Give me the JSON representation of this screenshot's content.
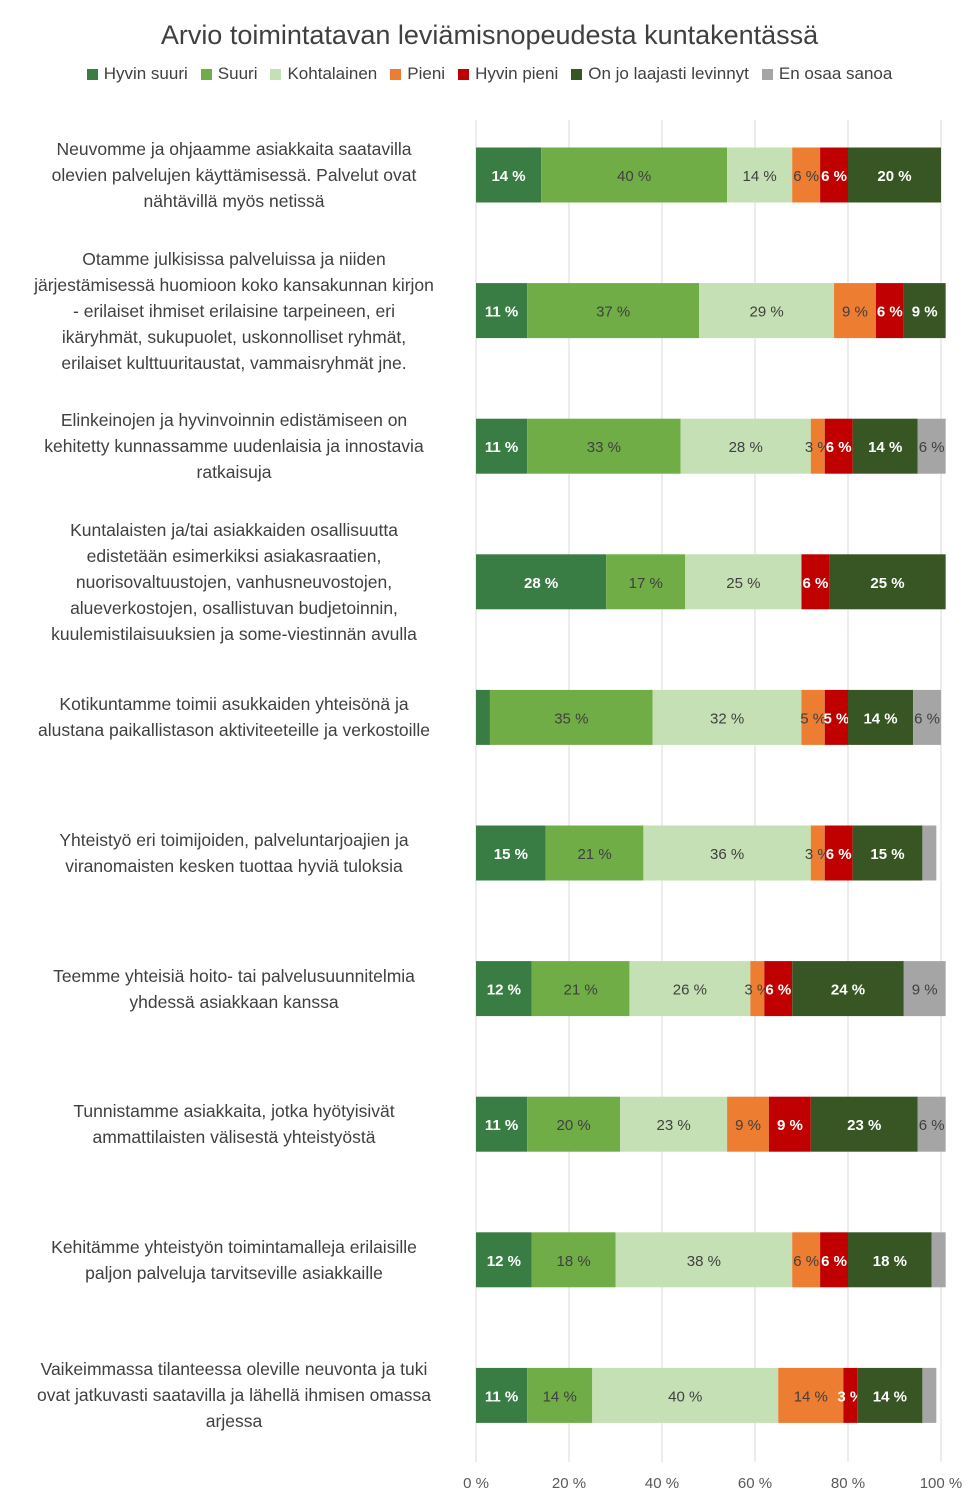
{
  "chart_data": {
    "type": "bar",
    "orientation": "horizontal",
    "stacked": "percent",
    "title": "Arvio toimintatavan leviämisnopeudesta kuntakentässä",
    "legend_position": "top",
    "grid": true,
    "xlim": [
      0,
      100
    ],
    "x_ticks": [
      "0 %",
      "20 %",
      "40 %",
      "60 %",
      "80 %",
      "100 %"
    ],
    "categories": [
      "Neuvomme ja ohjaamme asiakkaita saatavilla olevien palvelujen käyttämisessä. Palvelut ovat nähtävillä myös netissä",
      "Otamme julkisissa palveluissa ja niiden järjestämisessä huomioon koko kansakunnan kirjon - erilaiset ihmiset erilaisine tarpeineen, eri ikäryhmät, sukupuolet, uskonnolliset ryhmät, erilaiset kulttuuritaustat, vammaisryhmät jne.",
      "Elinkeinojen ja hyvinvoinnin edistämiseen on kehitetty kunnassamme uudenlaisia ja innostavia ratkaisuja",
      "Kuntalaisten ja/tai asiakkaiden osallisuutta edistetään esimerkiksi asiakasraatien, nuorisovaltuustojen, vanhusneuvostojen, alueverkostojen, osallistuvan budjetoinnin, kuulemistilaisuuksien ja some-viestinnän avulla",
      "Kotikuntamme toimii asukkaiden yhteisönä ja alustana paikallistason aktiviteeteille ja verkostoille",
      "Yhteistyö eri toimijoiden, palveluntarjoajien ja viranomaisten kesken tuottaa hyviä tuloksia",
      "Teemme yhteisiä hoito- tai palvelusuunnitelmia yhdessä asiakkaan kanssa",
      "Tunnistamme asiakkaita, jotka hyötyisivät ammattilaisten välisestä yhteistyöstä",
      "Kehitämme yhteistyön toimintamalleja erilaisille paljon palveluja tarvitseville asiakkaille",
      "Vaikeimmassa tilanteessa oleville neuvonta ja tuki ovat jatkuvasti saatavilla ja lähellä ihmisen omassa arjessa"
    ],
    "category_lines": [
      [
        "Neuvomme ja ohjaamme asiakkaita saatavilla",
        "olevien palvelujen käyttämisessä. Palvelut ovat",
        "nähtävillä myös netissä"
      ],
      [
        "Otamme julkisissa palveluissa ja niiden",
        "järjestämisessä huomioon koko kansakunnan kirjon",
        "- erilaiset ihmiset erilaisine tarpeineen, eri",
        "ikäryhmät, sukupuolet, uskonnolliset ryhmät,",
        "erilaiset kulttuuritaustat, vammaisryhmät jne."
      ],
      [
        "Elinkeinojen ja hyvinvoinnin edistämiseen on",
        "kehitetty kunnassamme uudenlaisia ja innostavia",
        "ratkaisuja"
      ],
      [
        "Kuntalaisten ja/tai asiakkaiden osallisuutta",
        "edistetään esimerkiksi asiakasraatien,",
        "nuorisovaltuustojen, vanhusneuvostojen,",
        "alueverkostojen, osallistuvan budjetoinnin,",
        "kuulemistilaisuuksien ja some-viestinnän avulla"
      ],
      [
        "Kotikuntamme toimii asukkaiden yhteisönä ja",
        "alustana paikallistason aktiviteeteille ja verkostoille"
      ],
      [
        "Yhteistyö eri toimijoiden, palveluntarjoajien ja",
        "viranomaisten kesken tuottaa hyviä tuloksia"
      ],
      [
        "Teemme yhteisiä hoito- tai palvelusuunnitelmia",
        "yhdessä asiakkaan kanssa"
      ],
      [
        "Tunnistamme asiakkaita, jotka hyötyisivät",
        "ammattilaisten välisestä yhteistyöstä"
      ],
      [
        "Kehitämme yhteistyön toimintamalleja erilaisille",
        "paljon palveluja tarvitseville asiakkaille"
      ],
      [
        "Vaikeimmassa tilanteessa oleville neuvonta ja tuki",
        "ovat jatkuvasti saatavilla ja lähellä ihmisen omassa",
        "arjessa"
      ]
    ],
    "series": [
      {
        "name": "Hyvin suuri",
        "color": "#3a7d44",
        "label_color": "#ffffff",
        "label_bold": true,
        "values": [
          14,
          11,
          11,
          28,
          3,
          15,
          12,
          11,
          12,
          11
        ],
        "labels": [
          "14 %",
          "11 %",
          "11 %",
          "28 %",
          "",
          "15 %",
          "12 %",
          "11 %",
          "12 %",
          "11 %"
        ]
      },
      {
        "name": "Suuri",
        "color": "#70ad47",
        "label_color": "#404040",
        "label_bold": false,
        "values": [
          40,
          37,
          33,
          17,
          35,
          21,
          21,
          20,
          18,
          14
        ],
        "labels": [
          "40 %",
          "37 %",
          "33 %",
          "17 %",
          "35 %",
          "21 %",
          "21 %",
          "20 %",
          "18 %",
          "14 %"
        ]
      },
      {
        "name": "Kohtalainen",
        "color": "#c5e0b4",
        "label_color": "#404040",
        "label_bold": false,
        "values": [
          14,
          29,
          28,
          25,
          32,
          36,
          26,
          23,
          38,
          40
        ],
        "labels": [
          "14 %",
          "29 %",
          "28 %",
          "25 %",
          "32 %",
          "36 %",
          "26 %",
          "23 %",
          "38 %",
          "40 %"
        ]
      },
      {
        "name": "Pieni",
        "color": "#ed7d31",
        "label_color": "#404040",
        "label_bold": false,
        "values": [
          6,
          9,
          3,
          0,
          5,
          3,
          3,
          9,
          6,
          14
        ],
        "labels": [
          "6 %",
          "9 %",
          "3 %",
          "",
          "5 %",
          "3 %",
          "3 %",
          "9 %",
          "6 %",
          "14 %"
        ]
      },
      {
        "name": "Hyvin pieni",
        "color": "#c00000",
        "label_color": "#ffffff",
        "label_bold": true,
        "values": [
          6,
          6,
          6,
          6,
          5,
          6,
          6,
          9,
          6,
          3
        ],
        "labels": [
          "6 %",
          "6 %",
          "6 %",
          "6 %",
          "5 %",
          "6 %",
          "6 %",
          "9 %",
          "6 %",
          "3 %"
        ]
      },
      {
        "name": "On jo laajasti levinnyt",
        "color": "#375623",
        "label_color": "#ffffff",
        "label_bold": true,
        "values": [
          20,
          9,
          14,
          25,
          14,
          15,
          24,
          23,
          18,
          14
        ],
        "labels": [
          "20 %",
          "9 %",
          "14 %",
          "25 %",
          "14 %",
          "15 %",
          "24 %",
          "23 %",
          "18 %",
          "14 %"
        ]
      },
      {
        "name": "En osaa sanoa",
        "color": "#a5a5a5",
        "label_color": "#404040",
        "label_bold": false,
        "values": [
          0,
          0,
          6,
          0,
          6,
          3,
          9,
          6,
          3,
          3
        ],
        "labels": [
          "",
          "",
          "6 %",
          "",
          "6 %",
          "",
          "9 %",
          "6 %",
          "",
          ""
        ]
      }
    ]
  }
}
